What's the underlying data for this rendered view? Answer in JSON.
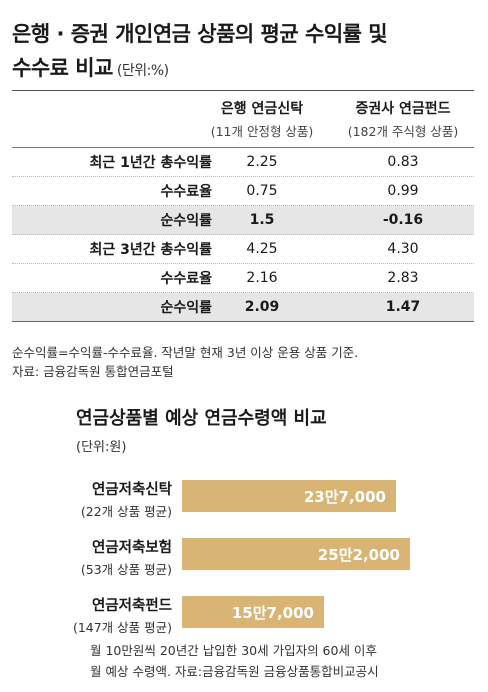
{
  "table": {
    "title_line1": "은행 · 증권 개인연금 상품의 평균 수익률 및",
    "title_line2": "수수료 비교",
    "unit": "(단위:%)",
    "columns": [
      {
        "name": "은행 연금신탁",
        "sub": "(11개 안정형 상품)"
      },
      {
        "name": "증권사 연금펀드",
        "sub": "(182개 주식형 상품)"
      }
    ],
    "rows": [
      {
        "label": "최근 1년간 총수익률",
        "bank": "2.25",
        "sec": "0.83"
      },
      {
        "label": "수수료율",
        "bank": "0.75",
        "sec": "0.99"
      },
      {
        "label": "순수익률",
        "bank": "1.5",
        "sec": "-0.16"
      },
      {
        "label": "최근 3년간 총수익률",
        "bank": "4.25",
        "sec": "4.30"
      },
      {
        "label": "수수료율",
        "bank": "2.16",
        "sec": "2.83"
      },
      {
        "label": "순수익률",
        "bank": "2.09",
        "sec": "1.47"
      }
    ],
    "note1": "순수익률=수익률-수수료율. 작년말 현재 3년 이상 운용 상품 기준.",
    "note2": "자료: 금융감독원 통합연금포털"
  },
  "chart": {
    "title": "연금상품별 예상 연금수령액 비교",
    "unit": "(단위:원)",
    "items": [
      {
        "name": "연금저축신탁",
        "sub": "(22개 상품 평균)",
        "label": "23만7,000"
      },
      {
        "name": "연금저축보험",
        "sub": "(53개 상품 평균)",
        "label": "25만2,000"
      },
      {
        "name": "연금저축펀드",
        "sub": "(147개 상품 평균)",
        "label": "15만7,000"
      }
    ],
    "footnote1": "월 10만원씩 20년간 납입한 30세 가입자의 60세 이후",
    "footnote2": "월 예상 수령액. 자료:금융감독원 금융상품통합비교공시",
    "bar_color": "#d9b575"
  },
  "chart_data": {
    "type": "bar",
    "title": "연금상품별 예상 연금수령액 비교",
    "unit": "(단위:원)",
    "categories": [
      "연금저축신탁",
      "연금저축보험",
      "연금저축펀드"
    ],
    "values": [
      237000,
      252000,
      157000
    ],
    "data_labels": [
      "23만7,000",
      "25만2,000",
      "15만7,000"
    ],
    "orientation": "horizontal"
  }
}
